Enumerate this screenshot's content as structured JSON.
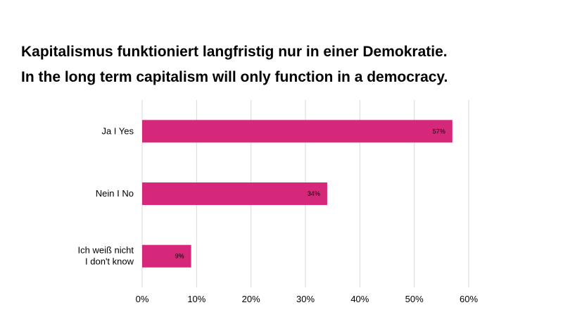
{
  "chart_data": {
    "type": "bar",
    "orientation": "horizontal",
    "title": "Kapitalismus funktioniert langfristig nur in einer Demokratie.",
    "subtitle": "In the long term capitalism will only function in a democracy.",
    "categories": [
      [
        "Ja I Yes"
      ],
      [
        "Nein I No"
      ],
      [
        "Ich weiß nicht",
        "I don't know"
      ]
    ],
    "values": [
      57,
      34,
      9
    ],
    "data_labels": [
      "57%",
      "34%",
      "9%"
    ],
    "xlim": [
      0,
      60
    ],
    "xticks": [
      0,
      10,
      20,
      30,
      40,
      50,
      60
    ],
    "xtick_labels": [
      "0%",
      "10%",
      "20%",
      "30%",
      "40%",
      "50%",
      "60%"
    ],
    "xlabel": "",
    "ylabel": "",
    "grid": true,
    "legend": "none",
    "bar_color": "#d6287a",
    "grid_color": "#d9d9d9"
  }
}
